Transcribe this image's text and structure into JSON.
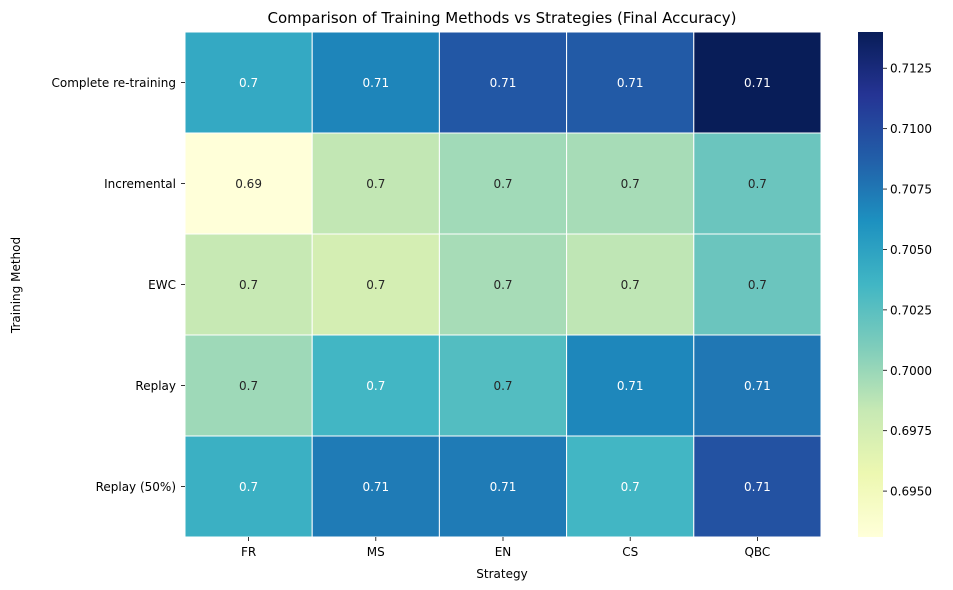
{
  "chart_data": {
    "type": "heatmap",
    "title": "Comparison of Training Methods vs Strategies (Final Accuracy)",
    "xlabel": "Strategy",
    "ylabel": "Training Method",
    "x_categories": [
      "FR",
      "MS",
      "EN",
      "CS",
      "QBC"
    ],
    "y_categories": [
      "Complete re-training",
      "Incremental",
      "EWC",
      "Replay",
      "Replay (50%)"
    ],
    "values": [
      [
        0.7045,
        0.7068,
        0.7092,
        0.709,
        0.714
      ],
      [
        0.6931,
        0.6985,
        0.6997,
        0.6995,
        0.7018
      ],
      [
        0.6983,
        0.6974,
        0.6995,
        0.6986,
        0.7018
      ],
      [
        0.6998,
        0.7035,
        0.7028,
        0.7067,
        0.7075
      ],
      [
        0.704,
        0.7073,
        0.7073,
        0.7035,
        0.7095
      ]
    ],
    "annotations": [
      [
        "0.7",
        "0.71",
        "0.71",
        "0.71",
        "0.71"
      ],
      [
        "0.69",
        "0.7",
        "0.7",
        "0.7",
        "0.7"
      ],
      [
        "0.7",
        "0.7",
        "0.7",
        "0.7",
        "0.7"
      ],
      [
        "0.7",
        "0.7",
        "0.7",
        "0.71",
        "0.71"
      ],
      [
        "0.7",
        "0.71",
        "0.71",
        "0.7",
        "0.71"
      ]
    ],
    "colormap": "YlGnBu",
    "vmin": 0.6931,
    "vmax": 0.714,
    "colorbar_ticks": [
      0.695,
      0.6975,
      0.7,
      0.7025,
      0.705,
      0.7075,
      0.71,
      0.7125
    ],
    "colorbar_tick_labels": [
      "0.6950",
      "0.6975",
      "0.7000",
      "0.7025",
      "0.7050",
      "0.7075",
      "0.7100",
      "0.7125"
    ],
    "grid": false,
    "colorbar_position": "right"
  }
}
